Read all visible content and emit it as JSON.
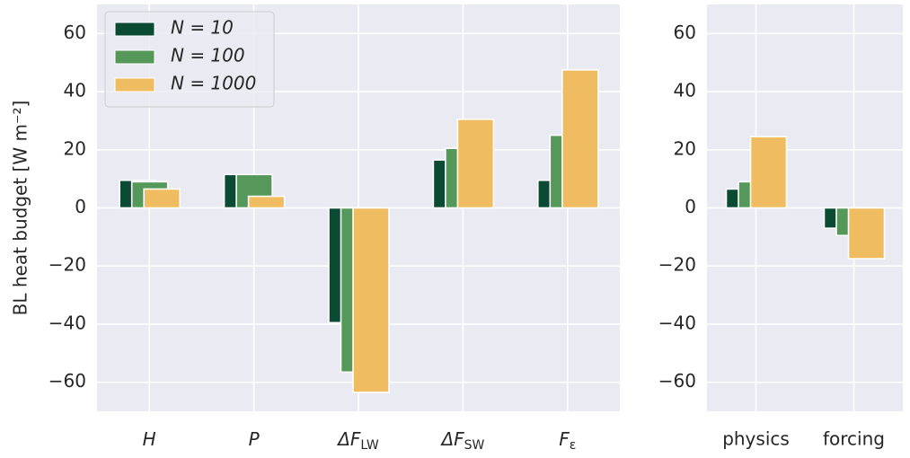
{
  "chart_data": [
    {
      "type": "bar",
      "ylabel": "BL heat budget  [W m⁻²]",
      "categories": [
        "H",
        "P",
        "ΔF_LW",
        "ΔF_SW",
        "F_ε"
      ],
      "series": [
        {
          "name": "N = 10",
          "color": "#0b4a33",
          "values": [
            9.5,
            11.5,
            -39.5,
            16.5,
            9.5
          ]
        },
        {
          "name": "N = 100",
          "color": "#55985a",
          "values": [
            9,
            11.5,
            -56.5,
            20.5,
            25
          ]
        },
        {
          "name": "N = 1000",
          "color": "#f0bc62",
          "values": [
            6.5,
            4,
            -63.5,
            30.5,
            47.5
          ]
        }
      ],
      "ylim": [
        -70,
        70
      ],
      "yticks": [
        {
          "value": -60,
          "label": "−60"
        },
        {
          "value": -40,
          "label": "−40"
        },
        {
          "value": -20,
          "label": "−20"
        },
        0,
        20,
        40,
        60
      ],
      "grid": true,
      "legend": "upper left"
    },
    {
      "type": "bar",
      "categories": [
        "physics",
        "forcing"
      ],
      "series": [
        {
          "name": "N = 10",
          "color": "#0b4a33",
          "values": [
            6.5,
            -7
          ]
        },
        {
          "name": "N = 100",
          "color": "#55985a",
          "values": [
            9,
            -9.5
          ]
        },
        {
          "name": "N = 1000",
          "color": "#f0bc62",
          "values": [
            24.5,
            -17.5
          ]
        }
      ],
      "ylim": [
        -70,
        70
      ],
      "yticks": [
        {
          "value": -60,
          "label": "−60"
        },
        {
          "value": -40,
          "label": "−40"
        },
        {
          "value": -20,
          "label": "−20"
        },
        0,
        20,
        40,
        60
      ],
      "grid": true
    }
  ]
}
